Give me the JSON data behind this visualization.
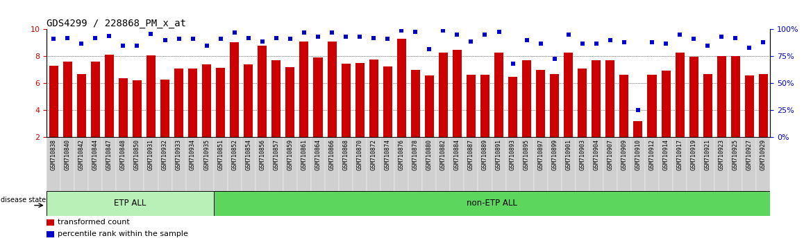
{
  "title": "GDS4299 / 228868_PM_x_at",
  "samples": [
    "GSM710838",
    "GSM710840",
    "GSM710842",
    "GSM710844",
    "GSM710847",
    "GSM710848",
    "GSM710850",
    "GSM710931",
    "GSM710932",
    "GSM710933",
    "GSM710934",
    "GSM710935",
    "GSM710851",
    "GSM710852",
    "GSM710854",
    "GSM710856",
    "GSM710857",
    "GSM710859",
    "GSM710861",
    "GSM710864",
    "GSM710866",
    "GSM710868",
    "GSM710870",
    "GSM710872",
    "GSM710874",
    "GSM710876",
    "GSM710878",
    "GSM710880",
    "GSM710882",
    "GSM710884",
    "GSM710887",
    "GSM710889",
    "GSM710891",
    "GSM710893",
    "GSM710895",
    "GSM710897",
    "GSM710899",
    "GSM710901",
    "GSM710903",
    "GSM710904",
    "GSM710907",
    "GSM710909",
    "GSM710910",
    "GSM710912",
    "GSM710914",
    "GSM710917",
    "GSM710919",
    "GSM710921",
    "GSM710923",
    "GSM710925",
    "GSM710927",
    "GSM710929"
  ],
  "bar_values": [
    7.3,
    7.6,
    6.7,
    7.6,
    8.1,
    6.4,
    6.2,
    8.05,
    6.3,
    7.1,
    7.1,
    7.4,
    7.15,
    9.05,
    7.4,
    8.8,
    7.7,
    7.2,
    9.1,
    7.9,
    9.1,
    7.45,
    7.5,
    7.75,
    7.25,
    9.3,
    7.0,
    6.6,
    8.3,
    8.5,
    6.65,
    6.65,
    8.3,
    6.5,
    7.7,
    7.0,
    6.7,
    8.3,
    7.1,
    7.7,
    7.7,
    6.65,
    3.2,
    6.65,
    6.95,
    8.3,
    7.95,
    6.7,
    8.0,
    8.0,
    6.6,
    6.7
  ],
  "dot_values": [
    91,
    92,
    87,
    92,
    94,
    85,
    85,
    96,
    90,
    91,
    91,
    85,
    91,
    97,
    92,
    89,
    92,
    91,
    97,
    93,
    97,
    93,
    93,
    92,
    91,
    99,
    98,
    82,
    99,
    95,
    89,
    95,
    98,
    68,
    90,
    87,
    73,
    95,
    87,
    87,
    90,
    88,
    25,
    88,
    87,
    95,
    91,
    85,
    93,
    92,
    83,
    88
  ],
  "etp_count": 12,
  "bar_color": "#cc0000",
  "dot_color": "#0000cc",
  "ylim_left": [
    2,
    10
  ],
  "ylim_right": [
    0,
    100
  ],
  "yticks_left": [
    2,
    4,
    6,
    8,
    10
  ],
  "yticks_right": [
    0,
    25,
    50,
    75,
    100
  ],
  "grid_values": [
    4,
    6,
    8
  ],
  "etp_color": "#b8f0b8",
  "non_etp_color": "#5cd65c",
  "tick_bg_color": "#d0d0d0",
  "title_fontsize": 10,
  "label_fontsize": 7.5
}
